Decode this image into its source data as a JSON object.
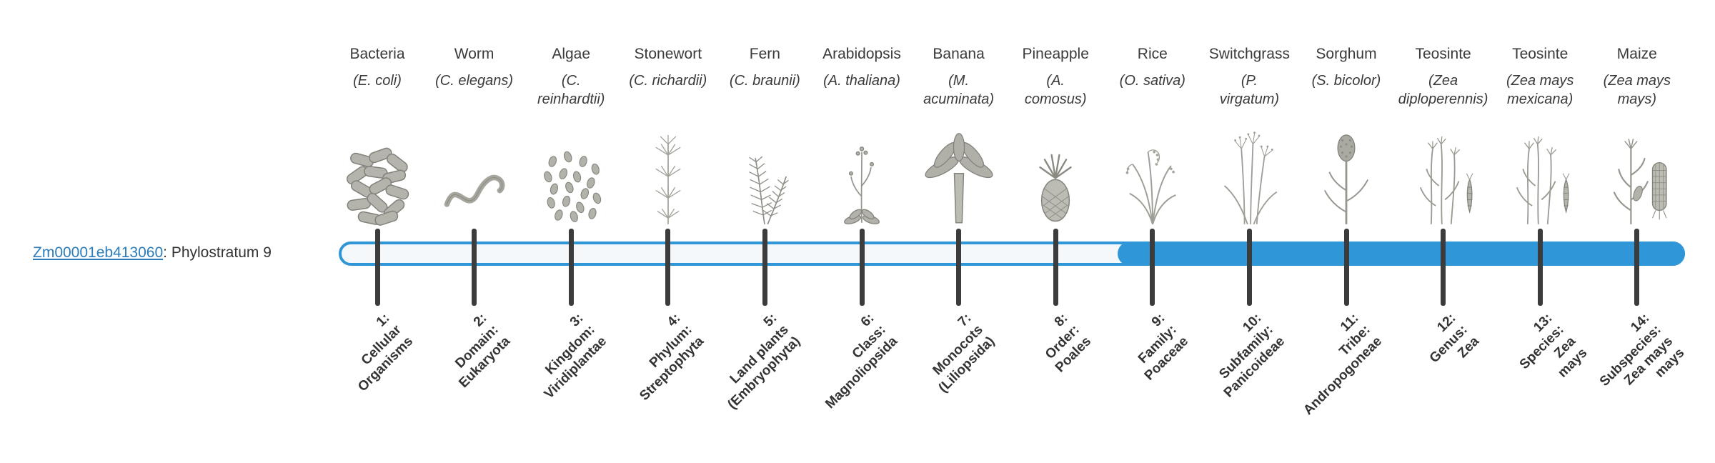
{
  "gene": {
    "id": "Zm00001eb413060",
    "suffix": ": Phylostratum 9",
    "phylostratum": 9
  },
  "colors": {
    "accent_blue": "#2f97d8",
    "bar_unfilled": "#f5f8fa",
    "tick": "#3c3c3c",
    "link": "#2b7cba",
    "text": "#3a3a3a"
  },
  "timeline": {
    "fill_starts_at_stage": 9,
    "total_stages": 14
  },
  "organisms": [
    {
      "name": "Bacteria",
      "sci": "(E. coli)",
      "icon": "bacteria-icon",
      "stage": "1:\nCellular\nOrganisms"
    },
    {
      "name": "Worm",
      "sci": "(C. elegans)",
      "icon": "worm-icon",
      "stage": "2:\nDomain:\nEukaryota"
    },
    {
      "name": "Algae",
      "sci": "(C.\nreinhardtii)",
      "icon": "algae-icon",
      "stage": "3:\nKingdom:\nViridiplantae"
    },
    {
      "name": "Stonewort",
      "sci": "(C. richardii)",
      "icon": "stonewort-icon",
      "stage": "4:\nPhylum:\nStreptophyta"
    },
    {
      "name": "Fern",
      "sci": "(C. braunii)",
      "icon": "fern-icon",
      "stage": "5:\nLand plants\n(Embryophyta)"
    },
    {
      "name": "Arabidopsis",
      "sci": "(A. thaliana)",
      "icon": "arabidopsis-icon",
      "stage": "6:\nClass:\nMagnoliopsida"
    },
    {
      "name": "Banana",
      "sci": "(M.\nacuminata)",
      "icon": "banana-icon",
      "stage": "7:\nMonocots\n(Liliopsida)"
    },
    {
      "name": "Pineapple",
      "sci": "(A.\ncomosus)",
      "icon": "pineapple-icon",
      "stage": "8:\nOrder:\nPoales"
    },
    {
      "name": "Rice",
      "sci": "(O. sativa)",
      "icon": "rice-icon",
      "stage": "9:\nFamily:\nPoaceae"
    },
    {
      "name": "Switchgrass",
      "sci": "(P.\nvirgatum)",
      "icon": "switchgrass-icon",
      "stage": "10:\nSubfamily:\nPanicoideae"
    },
    {
      "name": "Sorghum",
      "sci": "(S. bicolor)",
      "icon": "sorghum-icon",
      "stage": "11:\nTribe:\nAndropogoneae"
    },
    {
      "name": "Teosinte",
      "sci": "(Zea\ndiploperennis)",
      "icon": "teosinte-icon",
      "stage": "12:\nGenus:\nZea"
    },
    {
      "name": "Teosinte",
      "sci": "(Zea mays\nmexicana)",
      "icon": "teosinte-icon",
      "stage": "13:\nSpecies:\nZea\nmays"
    },
    {
      "name": "Maize",
      "sci": "(Zea mays\nmays)",
      "icon": "maize-icon",
      "stage": "14:\nSubspecies:\nZea mays\nmays"
    }
  ]
}
